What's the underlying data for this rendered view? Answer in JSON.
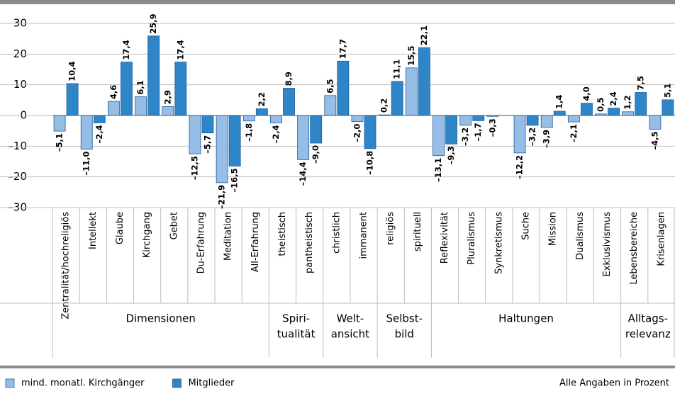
{
  "chart_data": {
    "type": "bar",
    "groups": [
      {
        "label": [
          "Dimensionen"
        ],
        "categories": [
          "Zentralität/hochreligiös",
          "Intellekt",
          "Glaube",
          "Kirchgang",
          "Gebet",
          "Du-Erfahrung",
          "Meditation",
          "All-Erfahrung"
        ]
      },
      {
        "label": [
          "Spiri-",
          "tualität"
        ],
        "categories": [
          "theistisch",
          "pantheistisch"
        ]
      },
      {
        "label": [
          "Welt-",
          "ansicht"
        ],
        "categories": [
          "christlich",
          "immanent"
        ]
      },
      {
        "label": [
          "Selbst-",
          "bild"
        ],
        "categories": [
          "religiös",
          "spirituell"
        ]
      },
      {
        "label": [
          "Haltungen"
        ],
        "categories": [
          "Reflexivität",
          "Pluralismus",
          "Synkretismus",
          "Suche",
          "Mission",
          "Dualismus",
          "Exklusivismus"
        ]
      },
      {
        "label": [
          "Alltags-",
          "relevanz"
        ],
        "categories": [
          "Lebensbereiche",
          "Krisenlagen"
        ]
      }
    ],
    "series": [
      {
        "name": "mind. monatl. Kirchgänger",
        "color": "#95bde6",
        "values": [
          -5.1,
          -11.0,
          4.6,
          6.1,
          2.9,
          -12.5,
          -21.9,
          -1.8,
          -2.4,
          -14.4,
          6.5,
          -2.0,
          0.2,
          15.5,
          -13.1,
          -3.2,
          -0.3,
          -12.2,
          -3.9,
          -2.1,
          0.5,
          1.2,
          -4.5
        ],
        "value_labels": [
          "–5,1",
          "–11,0",
          "4,6",
          "6,1",
          "2,9",
          "–12,5",
          "–21,9",
          "–1,8",
          "–2,4",
          "–14,4",
          "6,5",
          "–2,0",
          "0,2",
          "15,5",
          "–13,1",
          "–3,2",
          "–0,3",
          "–12,2",
          "–3,9",
          "–2,1",
          "0,5",
          "1,2",
          "–4,5"
        ]
      },
      {
        "name": "Mitglieder",
        "color": "#2e85c8",
        "values": [
          10.4,
          -2.4,
          17.4,
          25.9,
          17.4,
          -5.7,
          -16.5,
          2.2,
          8.9,
          -9.0,
          17.7,
          -10.8,
          11.1,
          22.1,
          -9.3,
          -1.7,
          null,
          -3.2,
          1.4,
          4.0,
          2.4,
          7.5,
          5.1
        ],
        "value_labels": [
          "10,4",
          "–2,4",
          "17,4",
          "25,9",
          "17,4",
          "–5,7",
          "–16,5",
          "2,2",
          "8,9",
          "–9,0",
          "17,7",
          "–10,8",
          "11,1",
          "22,1",
          "–9,3",
          "–1,7",
          null,
          "–3,2",
          "1,4",
          "4,0",
          "2,4",
          "7,5",
          "5,1"
        ]
      }
    ],
    "ylim": [
      -30,
      30
    ],
    "yticks": [
      30,
      20,
      10,
      0,
      {
        "value": -10,
        "label": "–10"
      },
      {
        "value": -20,
        "label": "–20"
      },
      {
        "value": -30,
        "label": "–30"
      }
    ],
    "grid": true,
    "note": "Alle Angaben in Prozent"
  }
}
